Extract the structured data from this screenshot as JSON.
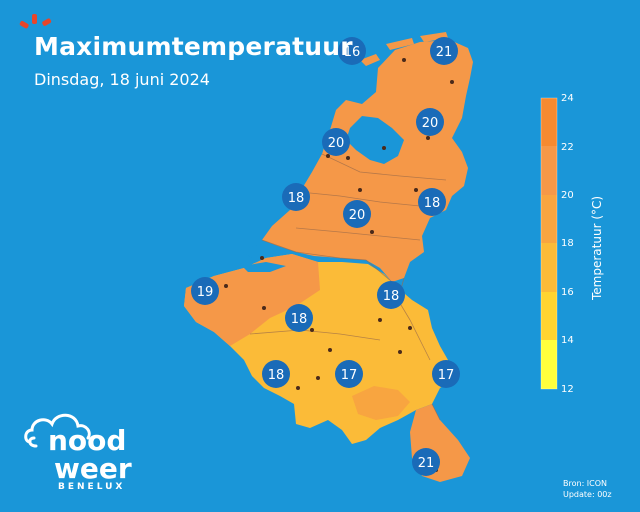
{
  "header": {
    "title": "Maximumtemperatuur",
    "subtitle": "Dinsdag, 18 juni 2024"
  },
  "legend": {
    "title": "Temperatuur (°C)",
    "ticks": [
      "24",
      "22",
      "20",
      "18",
      "16",
      "14",
      "12"
    ],
    "colors": {
      "c12": "#ffff3c",
      "c14": "#ffd430",
      "c16": "#fbbb38",
      "c18": "#f8a540",
      "c20": "#f59848",
      "c22": "#f58a30"
    }
  },
  "map": {
    "labels": [
      {
        "id": "den-helder",
        "value": "16"
      },
      {
        "id": "groningen",
        "value": "21"
      },
      {
        "id": "zwolle",
        "value": "20"
      },
      {
        "id": "amsterdam",
        "value": "20"
      },
      {
        "id": "rotterdam",
        "value": "18"
      },
      {
        "id": "brabant",
        "value": "20"
      },
      {
        "id": "limburg-nl",
        "value": "18"
      },
      {
        "id": "kust",
        "value": "19"
      },
      {
        "id": "gent",
        "value": "18"
      },
      {
        "id": "hasselt",
        "value": "18"
      },
      {
        "id": "henegouwen",
        "value": "18"
      },
      {
        "id": "namen",
        "value": "17"
      },
      {
        "id": "oostkantons",
        "value": "17"
      },
      {
        "id": "luxemburg",
        "value": "21"
      }
    ]
  },
  "brand": {
    "line1": "nood",
    "line2": "weer",
    "sub": "BENELUX",
    "icon": "cloud-sun-icon"
  },
  "source": {
    "line1": "Bron: ICON",
    "line2": "Update: 00z"
  }
}
